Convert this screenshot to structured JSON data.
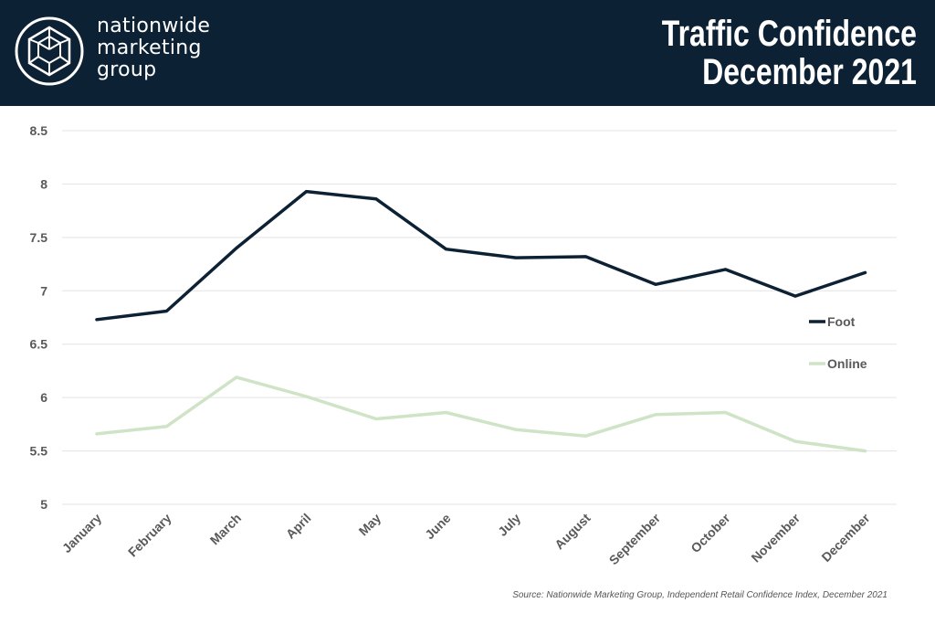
{
  "header": {
    "brand_lines": [
      "nationwide",
      "marketing",
      "group"
    ],
    "title_line1": "Traffic Confidence",
    "title_line2": "December 2021"
  },
  "colors": {
    "header_bg": "#0d2134",
    "foot": "#0d2134",
    "online": "#cfe3c7",
    "grid": "#e3e3e3"
  },
  "chart_data": {
    "type": "line",
    "title": "Traffic Confidence December 2021",
    "xlabel": "",
    "ylabel": "",
    "categories": [
      "January",
      "February",
      "March",
      "April",
      "May",
      "June",
      "July",
      "August",
      "September",
      "October",
      "November",
      "December"
    ],
    "ylim": [
      5,
      8.5
    ],
    "yticks": [
      "5",
      "5.5",
      "6",
      "6.5",
      "7",
      "7.5",
      "8",
      "8.5"
    ],
    "grid": true,
    "legend": "right",
    "series": [
      {
        "name": "Foot",
        "values": [
          6.73,
          6.81,
          7.4,
          7.93,
          7.86,
          7.39,
          7.31,
          7.32,
          7.06,
          7.2,
          6.95,
          7.17
        ]
      },
      {
        "name": "Online",
        "values": [
          5.66,
          5.73,
          6.19,
          6.01,
          5.8,
          5.86,
          5.7,
          5.64,
          5.84,
          5.86,
          5.59,
          5.5
        ]
      }
    ]
  },
  "source": "Source: Nationwide Marketing Group, Independent Retail Confidence Index, December 2021"
}
